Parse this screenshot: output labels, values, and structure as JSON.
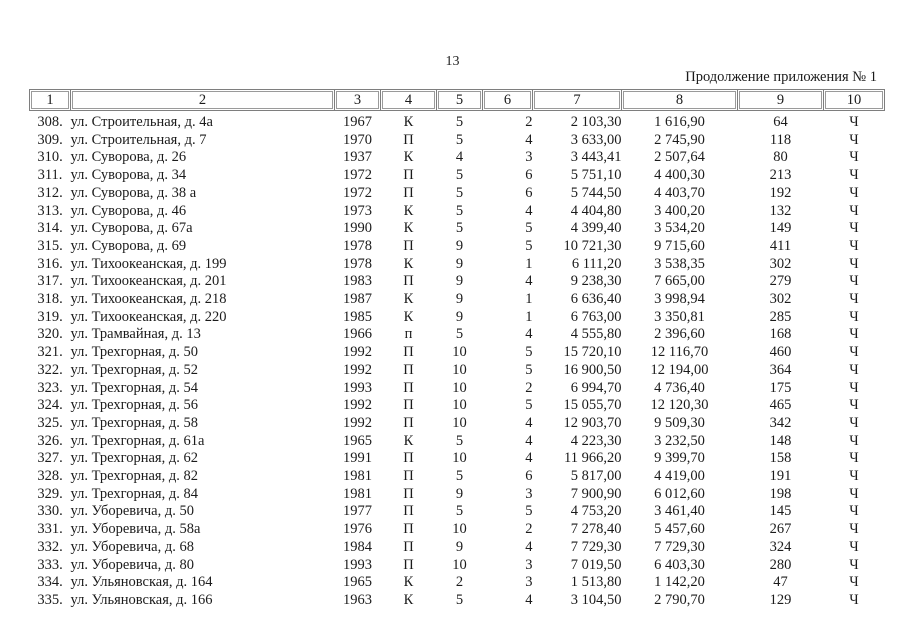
{
  "page": {
    "number": "13",
    "continuation_note": "Продолжение приложения № 1"
  },
  "table": {
    "header": [
      "1",
      "2",
      "3",
      "4",
      "5",
      "6",
      "7",
      "8",
      "9",
      "10"
    ],
    "rows": [
      [
        "308.",
        "ул. Строительная, д. 4а",
        "1967",
        "К",
        "5",
        "2",
        "2 103,30",
        "1 616,90",
        "64",
        "Ч"
      ],
      [
        "309.",
        "ул. Строительная, д. 7",
        "1970",
        "П",
        "5",
        "4",
        "3 633,00",
        "2 745,90",
        "118",
        "Ч"
      ],
      [
        "310.",
        "ул. Суворова, д. 26",
        "1937",
        "К",
        "4",
        "3",
        "3 443,41",
        "2 507,64",
        "80",
        "Ч"
      ],
      [
        "311.",
        "ул. Суворова, д. 34",
        "1972",
        "П",
        "5",
        "6",
        "5 751,10",
        "4 400,30",
        "213",
        "Ч"
      ],
      [
        "312.",
        "ул. Суворова, д. 38 а",
        "1972",
        "П",
        "5",
        "6",
        "5 744,50",
        "4 403,70",
        "192",
        "Ч"
      ],
      [
        "313.",
        "ул. Суворова, д. 46",
        "1973",
        "К",
        "5",
        "4",
        "4 404,80",
        "3 400,20",
        "132",
        "Ч"
      ],
      [
        "314.",
        "ул. Суворова, д. 67а",
        "1990",
        "К",
        "5",
        "5",
        "4 399,40",
        "3 534,20",
        "149",
        "Ч"
      ],
      [
        "315.",
        "ул. Суворова, д. 69",
        "1978",
        "П",
        "9",
        "5",
        "10 721,30",
        "9 715,60",
        "411",
        "Ч"
      ],
      [
        "316.",
        "ул. Тихоокеанская, д. 199",
        "1978",
        "К",
        "9",
        "1",
        "6 111,20",
        "3 538,35",
        "302",
        "Ч"
      ],
      [
        "317.",
        "ул. Тихоокеанская, д. 201",
        "1983",
        "П",
        "9",
        "4",
        "9 238,30",
        "7 665,00",
        "279",
        "Ч"
      ],
      [
        "318.",
        "ул. Тихоокеанская, д. 218",
        "1987",
        "К",
        "9",
        "1",
        "6 636,40",
        "3 998,94",
        "302",
        "Ч"
      ],
      [
        "319.",
        "ул. Тихоокеанская, д. 220",
        "1985",
        "К",
        "9",
        "1",
        "6 763,00",
        "3 350,81",
        "285",
        "Ч"
      ],
      [
        "320.",
        "ул. Трамвайная, д. 13",
        "1966",
        "п",
        "5",
        "4",
        "4 555,80",
        "2 396,60",
        "168",
        "Ч"
      ],
      [
        "321.",
        "ул. Трехгорная, д. 50",
        "1992",
        "П",
        "10",
        "5",
        "15 720,10",
        "12 116,70",
        "460",
        "Ч"
      ],
      [
        "322.",
        "ул. Трехгорная, д. 52",
        "1992",
        "П",
        "10",
        "5",
        "16 900,50",
        "12 194,00",
        "364",
        "Ч"
      ],
      [
        "323.",
        "ул. Трехгорная, д. 54",
        "1993",
        "П",
        "10",
        "2",
        "6 994,70",
        "4 736,40",
        "175",
        "Ч"
      ],
      [
        "324.",
        "ул. Трехгорная, д. 56",
        "1992",
        "П",
        "10",
        "5",
        "15 055,70",
        "12 120,30",
        "465",
        "Ч"
      ],
      [
        "325.",
        "ул. Трехгорная, д. 58",
        "1992",
        "П",
        "10",
        "4",
        "12 903,70",
        "9 509,30",
        "342",
        "Ч"
      ],
      [
        "326.",
        "ул. Трехгорная, д. 61а",
        "1965",
        "К",
        "5",
        "4",
        "4 223,30",
        "3 232,50",
        "148",
        "Ч"
      ],
      [
        "327.",
        "ул. Трехгорная, д. 62",
        "1991",
        "П",
        "10",
        "4",
        "11 966,20",
        "9 399,70",
        "158",
        "Ч"
      ],
      [
        "328.",
        "ул. Трехгорная, д. 82",
        "1981",
        "П",
        "5",
        "6",
        "5 817,00",
        "4 419,00",
        "191",
        "Ч"
      ],
      [
        "329.",
        "ул. Трехгорная, д. 84",
        "1981",
        "П",
        "9",
        "3",
        "7 900,90",
        "6 012,60",
        "198",
        "Ч"
      ],
      [
        "330.",
        "ул. Уборевича, д. 50",
        "1977",
        "П",
        "5",
        "5",
        "4 753,20",
        "3 461,40",
        "145",
        "Ч"
      ],
      [
        "331.",
        "ул. Уборевича, д. 58а",
        "1976",
        "П",
        "10",
        "2",
        "7 278,40",
        "5 457,60",
        "267",
        "Ч"
      ],
      [
        "332.",
        "ул. Уборевича, д. 68",
        "1984",
        "П",
        "9",
        "4",
        "7 729,30",
        "7 729,30",
        "324",
        "Ч"
      ],
      [
        "333.",
        "ул. Уборевича, д. 80",
        "1993",
        "П",
        "10",
        "3",
        "7 019,50",
        "6 403,30",
        "280",
        "Ч"
      ],
      [
        "334.",
        "ул. Ульяновская, д. 164",
        "1965",
        "К",
        "2",
        "3",
        "1 513,80",
        "1 142,20",
        "47",
        "Ч"
      ],
      [
        "335.",
        "ул. Ульяновская, д. 166",
        "1963",
        "К",
        "5",
        "4",
        "3 104,50",
        "2 790,70",
        "129",
        "Ч"
      ]
    ]
  }
}
